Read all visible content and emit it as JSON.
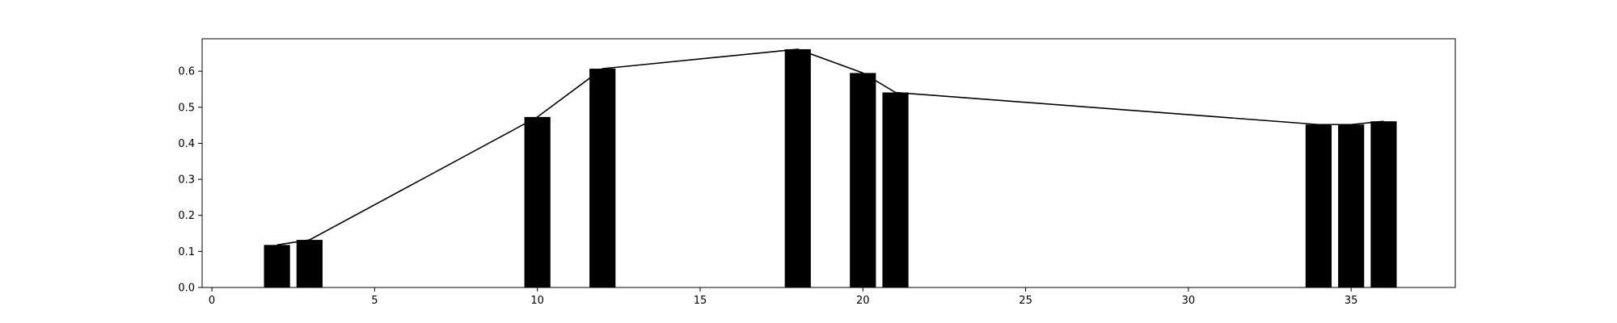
{
  "chart_data": {
    "type": "bar",
    "title": "",
    "xlabel": "",
    "ylabel": "",
    "xlim": [
      -0.3,
      38.2
    ],
    "ylim": [
      0.0,
      0.69
    ],
    "grid": false,
    "legend": "none",
    "bar_width": 0.8,
    "colors": {
      "bar": "#000000",
      "line": "#000000",
      "axes": "#000000",
      "background": "#ffffff"
    },
    "x": [
      2,
      3,
      10,
      12,
      18,
      20,
      21,
      34,
      35,
      36
    ],
    "values": [
      0.118,
      0.132,
      0.473,
      0.607,
      0.661,
      0.595,
      0.541,
      0.452,
      0.452,
      0.461
    ],
    "line_series": {
      "x": [
        2,
        3,
        10,
        12,
        18,
        20,
        21,
        34,
        35,
        36
      ],
      "values": [
        0.118,
        0.132,
        0.473,
        0.607,
        0.661,
        0.595,
        0.541,
        0.452,
        0.452,
        0.461
      ]
    },
    "xticks": [
      0,
      5,
      10,
      15,
      20,
      25,
      30,
      35
    ],
    "xtick_labels": [
      "0",
      "5",
      "10",
      "15",
      "20",
      "25",
      "30",
      "35"
    ],
    "yticks": [
      0.0,
      0.1,
      0.2,
      0.3,
      0.4,
      0.5,
      0.6
    ],
    "ytick_labels": [
      "0.0",
      "0.1",
      "0.2",
      "0.3",
      "0.4",
      "0.5",
      "0.6"
    ]
  }
}
